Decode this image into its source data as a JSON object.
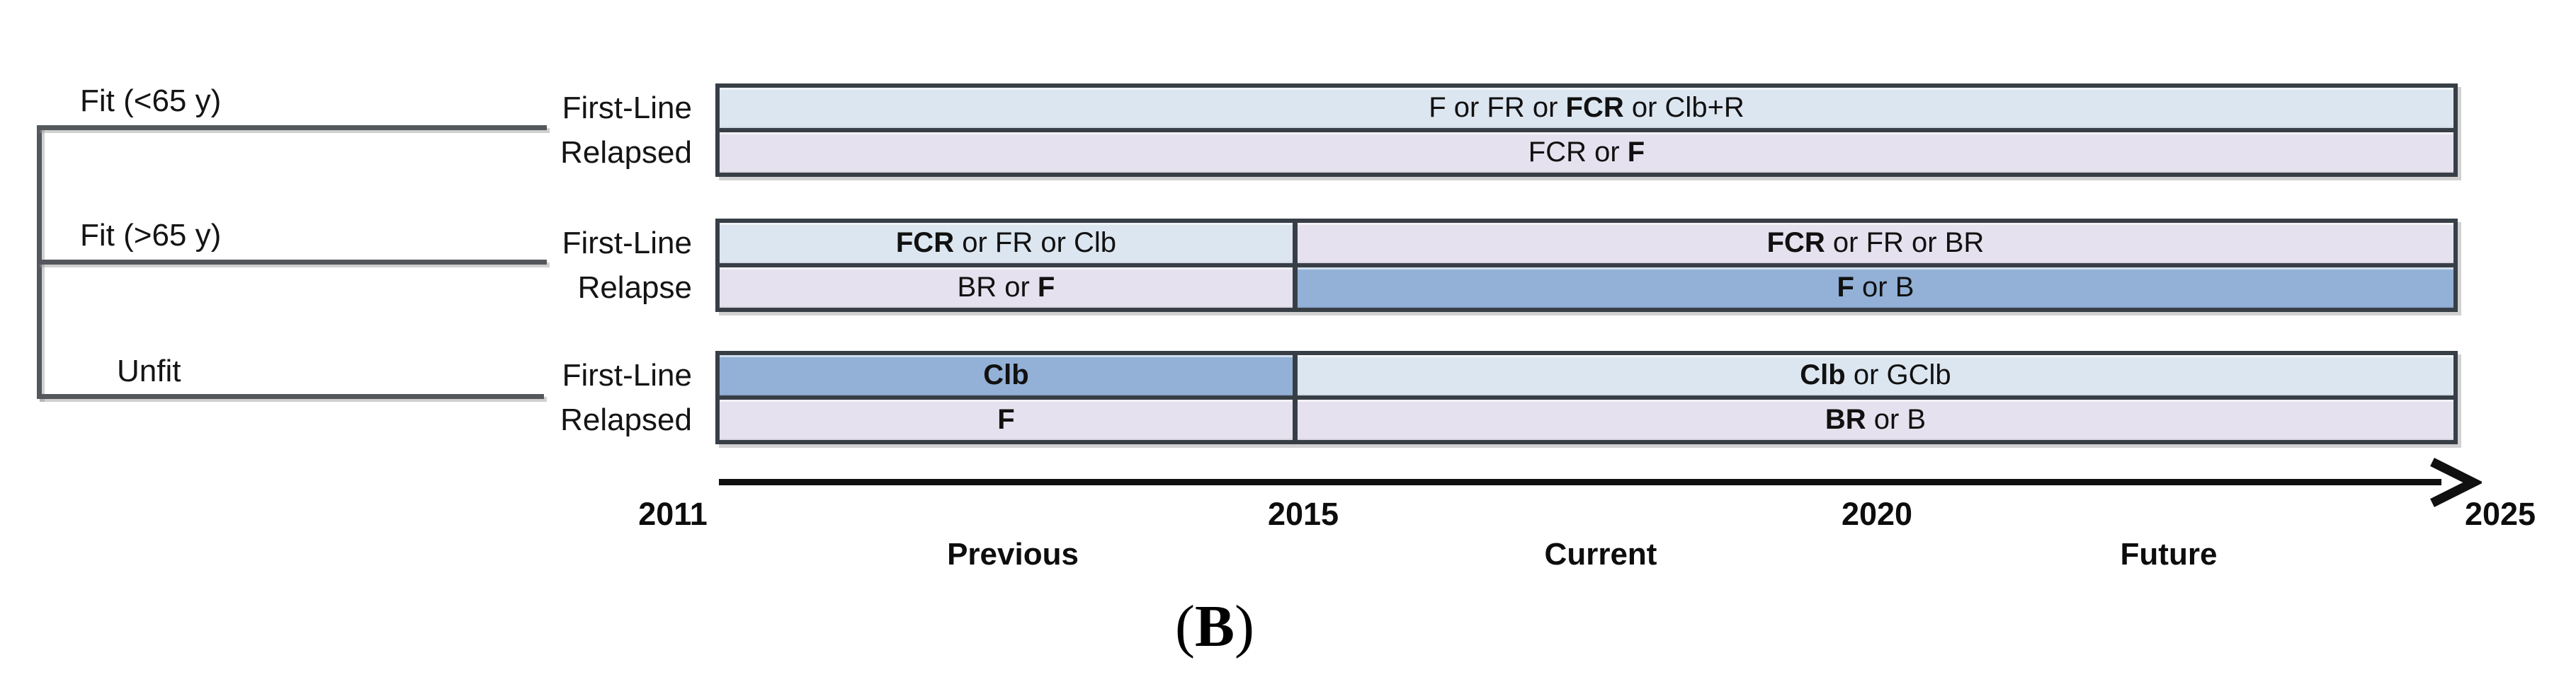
{
  "palette": {
    "light_blue": "#dce6f1",
    "lavender": "#e6e1ee",
    "medium_blue": "#93b1d7",
    "bar_border": "#383e46",
    "line_gray": "#54575b"
  },
  "groups": [
    {
      "label": "Fit (<65 y)",
      "rows": [
        {
          "label": "First-Line",
          "segments": [
            {
              "span": "full",
              "color": "light_blue",
              "runs": [
                {
                  "text": "F or FR or "
                },
                {
                  "text": "FCR",
                  "bold": true
                },
                {
                  "text": " or Clb+R"
                }
              ]
            }
          ]
        },
        {
          "label": "Relapsed",
          "segments": [
            {
              "span": "full",
              "color": "lavender",
              "runs": [
                {
                  "text": "FCR or "
                },
                {
                  "text": "F",
                  "bold": true
                }
              ]
            }
          ]
        }
      ]
    },
    {
      "label": "Fit (>65 y)",
      "rows": [
        {
          "label": "First-Line",
          "segments": [
            {
              "span": "left",
              "color": "light_blue",
              "runs": [
                {
                  "text": "FCR",
                  "bold": true
                },
                {
                  "text": " or FR or Clb"
                }
              ]
            },
            {
              "span": "right",
              "color": "lavender",
              "runs": [
                {
                  "text": "FCR",
                  "bold": true
                },
                {
                  "text": " or FR or BR"
                }
              ]
            }
          ]
        },
        {
          "label": "Relapse",
          "segments": [
            {
              "span": "left",
              "color": "lavender",
              "runs": [
                {
                  "text": "BR or "
                },
                {
                  "text": "F",
                  "bold": true
                }
              ]
            },
            {
              "span": "right",
              "color": "medium_blue",
              "runs": [
                {
                  "text": "F",
                  "bold": true
                },
                {
                  "text": " or B"
                }
              ]
            }
          ]
        }
      ]
    },
    {
      "label": "Unfit",
      "rows": [
        {
          "label": "First-Line",
          "segments": [
            {
              "span": "left",
              "color": "medium_blue",
              "runs": [
                {
                  "text": "Clb",
                  "bold": true
                }
              ]
            },
            {
              "span": "right",
              "color": "light_blue",
              "runs": [
                {
                  "text": "Clb",
                  "bold": true
                },
                {
                  "text": " or GClb"
                }
              ]
            }
          ]
        },
        {
          "label": "Relapsed",
          "segments": [
            {
              "span": "left",
              "color": "lavender",
              "runs": [
                {
                  "text": "F",
                  "bold": true
                }
              ]
            },
            {
              "span": "right",
              "color": "lavender",
              "runs": [
                {
                  "text": "BR",
                  "bold": true
                },
                {
                  "text": " or B"
                }
              ]
            }
          ]
        }
      ]
    }
  ],
  "timeline": {
    "years": [
      "2011",
      "2015",
      "2020",
      "2025"
    ],
    "periods": [
      "Previous",
      "Current",
      "Future"
    ]
  },
  "caption": {
    "runs": [
      {
        "text": "("
      },
      {
        "text": "B",
        "bold": true
      },
      {
        "text": ")"
      }
    ]
  },
  "chart_data": {
    "type": "table",
    "title": "Treatment timeline by patient fitness (B)",
    "x_axis": {
      "label_years": [
        2011,
        2015,
        2020,
        2025
      ],
      "segment_split_year": 2015,
      "period_bands": [
        "Previous",
        "Current",
        "Future"
      ]
    },
    "rows": [
      {
        "group": "Fit (<65 y)",
        "line": "First-Line",
        "2011-2025": "F or FR or FCR or Clb+R"
      },
      {
        "group": "Fit (<65 y)",
        "line": "Relapsed",
        "2011-2025": "FCR or F"
      },
      {
        "group": "Fit (>65 y)",
        "line": "First-Line",
        "2011-2015": "FCR or FR or Clb",
        "2015-2025": "FCR or FR or BR"
      },
      {
        "group": "Fit (>65 y)",
        "line": "Relapse",
        "2011-2015": "BR or F",
        "2015-2025": "F or B"
      },
      {
        "group": "Unfit",
        "line": "First-Line",
        "2011-2015": "Clb",
        "2015-2025": "Clb or GClb"
      },
      {
        "group": "Unfit",
        "line": "Relapsed",
        "2011-2015": "F",
        "2015-2025": "BR or B"
      }
    ]
  }
}
